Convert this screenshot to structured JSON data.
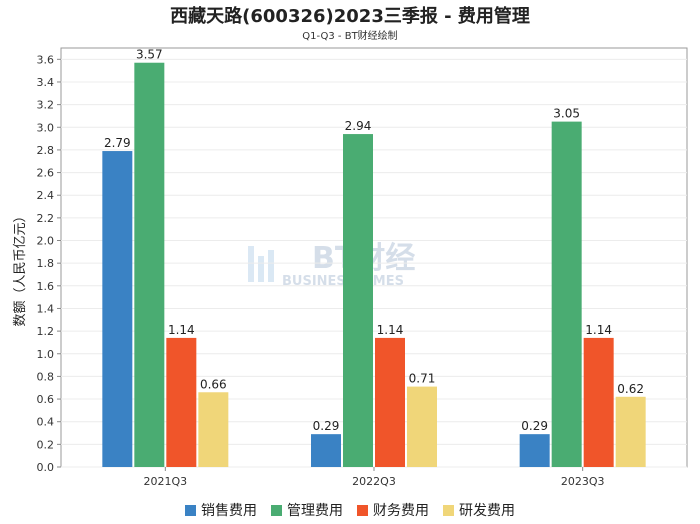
{
  "header": {
    "title": "西藏天路(600326)2023三季报 - 费用管理",
    "subtitle": "Q1-Q3 - BT财经绘制"
  },
  "watermark": {
    "brand": "BT财经",
    "sub": "BUSINESS TIMES"
  },
  "chart_data": {
    "type": "bar",
    "categories": [
      "2021Q3",
      "2022Q3",
      "2023Q3"
    ],
    "series": [
      {
        "name": "销售费用",
        "values": [
          2.79,
          0.29,
          0.29
        ],
        "color": "#3a82c4"
      },
      {
        "name": "管理费用",
        "values": [
          3.57,
          2.94,
          3.05
        ],
        "color": "#4aac72"
      },
      {
        "name": "财务费用",
        "values": [
          1.14,
          1.14,
          1.14
        ],
        "color": "#f0552a"
      },
      {
        "name": "研发费用",
        "values": [
          0.66,
          0.71,
          0.62
        ],
        "color": "#f0d679"
      }
    ],
    "ylabel": "数额（人民币亿元）",
    "ylim": [
      0,
      3.7
    ],
    "yticks": [
      "0.0",
      "0.2",
      "0.4",
      "0.6",
      "0.8",
      "1.0",
      "1.2",
      "1.4",
      "1.6",
      "1.8",
      "2.0",
      "2.2",
      "2.4",
      "2.6",
      "2.8",
      "3.0",
      "3.2",
      "3.4",
      "3.6"
    ],
    "grid": true,
    "legend_position": "bottom"
  }
}
